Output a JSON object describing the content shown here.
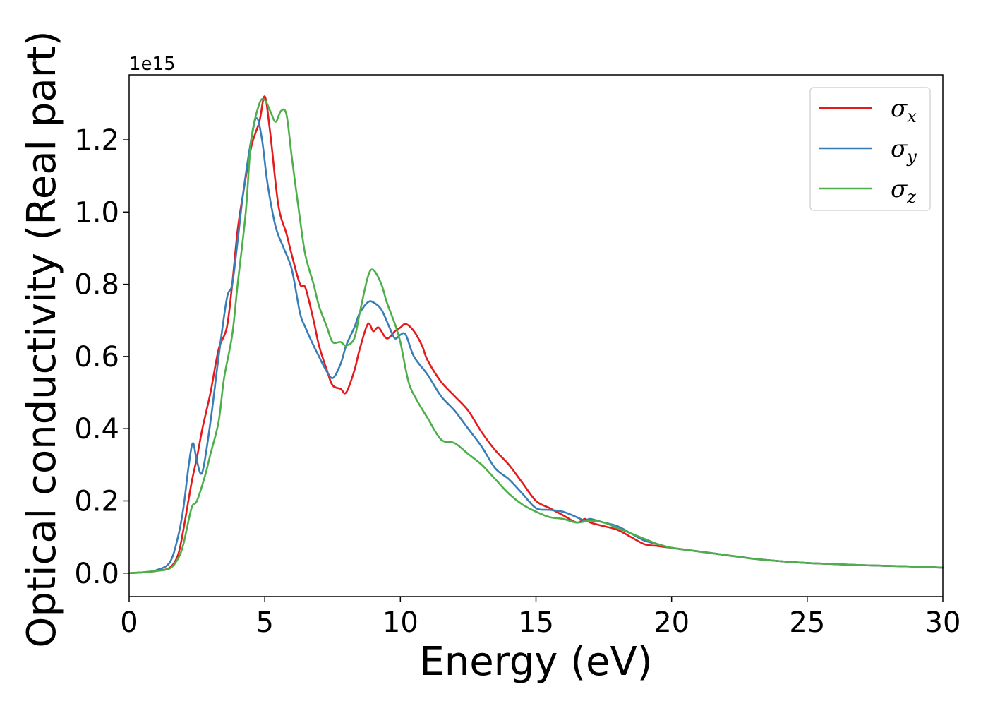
{
  "chart_data": {
    "type": "line",
    "title": "",
    "xlabel": "Energy (eV)",
    "ylabel": "Optical conductivity (Real part)",
    "y_offset_label": "1e15",
    "xlim": [
      0,
      30
    ],
    "ylim": [
      -0.065,
      1.38
    ],
    "x_ticks": [
      0,
      5,
      10,
      15,
      20,
      25,
      30
    ],
    "x_tick_labels": [
      "0",
      "5",
      "10",
      "15",
      "20",
      "25",
      "30"
    ],
    "y_ticks": [
      0.0,
      0.2,
      0.4,
      0.6,
      0.8,
      1.0,
      1.2
    ],
    "y_tick_labels": [
      "0.0",
      "0.2",
      "0.4",
      "0.6",
      "0.8",
      "1.0",
      "1.2"
    ],
    "grid": false,
    "legend_position": "top-right",
    "series": [
      {
        "name": "σx",
        "symbol": "σ",
        "subscript": "x",
        "color": "#e41a1c",
        "x": [
          0,
          0.5,
          1.0,
          1.5,
          1.8,
          2.0,
          2.3,
          2.5,
          2.7,
          3.0,
          3.3,
          3.6,
          3.8,
          4.0,
          4.2,
          4.5,
          4.8,
          5.0,
          5.2,
          5.5,
          5.8,
          6.0,
          6.3,
          6.5,
          6.8,
          7.0,
          7.3,
          7.5,
          7.8,
          8.0,
          8.3,
          8.5,
          8.8,
          9.0,
          9.2,
          9.5,
          9.8,
          10.0,
          10.2,
          10.5,
          10.8,
          11.0,
          11.5,
          12.0,
          12.5,
          13.0,
          13.5,
          14.0,
          14.5,
          15.0,
          15.5,
          16.0,
          16.5,
          16.8,
          17.0,
          17.5,
          18.0,
          18.5,
          19.0,
          19.5,
          20.0,
          21.0,
          22.0,
          23.0,
          24.0,
          25.0,
          26.0,
          27.0,
          28.0,
          29.0,
          30.0
        ],
        "values": [
          0.0,
          0.002,
          0.006,
          0.015,
          0.05,
          0.12,
          0.25,
          0.32,
          0.4,
          0.5,
          0.62,
          0.68,
          0.8,
          0.95,
          1.05,
          1.18,
          1.25,
          1.32,
          1.22,
          1.02,
          0.94,
          0.88,
          0.8,
          0.79,
          0.7,
          0.63,
          0.56,
          0.52,
          0.51,
          0.5,
          0.56,
          0.62,
          0.69,
          0.67,
          0.68,
          0.65,
          0.67,
          0.68,
          0.69,
          0.67,
          0.63,
          0.59,
          0.53,
          0.49,
          0.45,
          0.39,
          0.34,
          0.3,
          0.25,
          0.2,
          0.18,
          0.16,
          0.14,
          0.15,
          0.14,
          0.13,
          0.12,
          0.1,
          0.08,
          0.075,
          0.07,
          0.06,
          0.05,
          0.04,
          0.033,
          0.028,
          0.025,
          0.022,
          0.02,
          0.018,
          0.015
        ]
      },
      {
        "name": "σy",
        "symbol": "σ",
        "subscript": "y",
        "color": "#377eb8",
        "x": [
          0,
          0.5,
          1.0,
          1.5,
          1.8,
          2.0,
          2.2,
          2.35,
          2.5,
          2.7,
          3.0,
          3.3,
          3.6,
          3.8,
          4.0,
          4.2,
          4.5,
          4.7,
          4.9,
          5.1,
          5.4,
          5.7,
          6.0,
          6.3,
          6.5,
          6.8,
          7.0,
          7.2,
          7.5,
          7.8,
          8.0,
          8.3,
          8.5,
          8.8,
          9.0,
          9.3,
          9.6,
          9.8,
          10.0,
          10.2,
          10.5,
          11.0,
          11.5,
          12.0,
          12.5,
          13.0,
          13.5,
          14.0,
          14.5,
          15.0,
          15.5,
          16.0,
          16.5,
          16.8,
          17.0,
          17.5,
          18.0,
          18.5,
          19.0,
          19.5,
          20.0,
          21.0,
          22.0,
          23.0,
          24.0,
          25.0,
          26.0,
          27.0,
          28.0,
          29.0,
          30.0
        ],
        "values": [
          0.0,
          0.002,
          0.008,
          0.03,
          0.1,
          0.18,
          0.3,
          0.36,
          0.31,
          0.28,
          0.42,
          0.6,
          0.76,
          0.8,
          0.92,
          1.05,
          1.2,
          1.26,
          1.2,
          1.08,
          0.96,
          0.9,
          0.84,
          0.72,
          0.68,
          0.63,
          0.6,
          0.57,
          0.54,
          0.58,
          0.63,
          0.68,
          0.72,
          0.75,
          0.75,
          0.73,
          0.68,
          0.65,
          0.66,
          0.66,
          0.6,
          0.55,
          0.49,
          0.45,
          0.4,
          0.35,
          0.29,
          0.26,
          0.22,
          0.18,
          0.175,
          0.17,
          0.155,
          0.145,
          0.15,
          0.14,
          0.13,
          0.11,
          0.09,
          0.08,
          0.07,
          0.06,
          0.05,
          0.04,
          0.033,
          0.028,
          0.025,
          0.022,
          0.02,
          0.018,
          0.015
        ]
      },
      {
        "name": "σz",
        "symbol": "σ",
        "subscript": "z",
        "color": "#4daf4a",
        "x": [
          0,
          0.5,
          1.0,
          1.5,
          1.8,
          2.0,
          2.3,
          2.5,
          2.8,
          3.0,
          3.3,
          3.5,
          3.8,
          4.0,
          4.3,
          4.5,
          4.8,
          5.0,
          5.2,
          5.4,
          5.6,
          5.8,
          6.0,
          6.3,
          6.5,
          6.8,
          7.0,
          7.3,
          7.5,
          7.8,
          8.0,
          8.3,
          8.5,
          8.8,
          9.0,
          9.3,
          9.5,
          9.8,
          10.0,
          10.3,
          10.6,
          11.0,
          11.5,
          12.0,
          12.5,
          13.0,
          13.5,
          14.0,
          14.5,
          15.0,
          15.5,
          16.0,
          16.5,
          17.0,
          17.5,
          18.0,
          18.5,
          19.0,
          19.5,
          20.0,
          21.0,
          22.0,
          23.0,
          24.0,
          25.0,
          26.0,
          27.0,
          28.0,
          29.0,
          30.0
        ],
        "values": [
          0.0,
          0.002,
          0.006,
          0.013,
          0.04,
          0.08,
          0.18,
          0.2,
          0.27,
          0.33,
          0.42,
          0.54,
          0.66,
          0.8,
          1.0,
          1.2,
          1.3,
          1.31,
          1.28,
          1.25,
          1.28,
          1.27,
          1.15,
          0.98,
          0.88,
          0.8,
          0.74,
          0.68,
          0.64,
          0.64,
          0.63,
          0.65,
          0.72,
          0.82,
          0.84,
          0.8,
          0.75,
          0.69,
          0.64,
          0.53,
          0.48,
          0.43,
          0.37,
          0.36,
          0.33,
          0.3,
          0.26,
          0.22,
          0.19,
          0.17,
          0.155,
          0.15,
          0.14,
          0.145,
          0.14,
          0.125,
          0.11,
          0.095,
          0.08,
          0.07,
          0.06,
          0.05,
          0.04,
          0.033,
          0.028,
          0.025,
          0.022,
          0.02,
          0.018,
          0.015
        ]
      }
    ]
  }
}
